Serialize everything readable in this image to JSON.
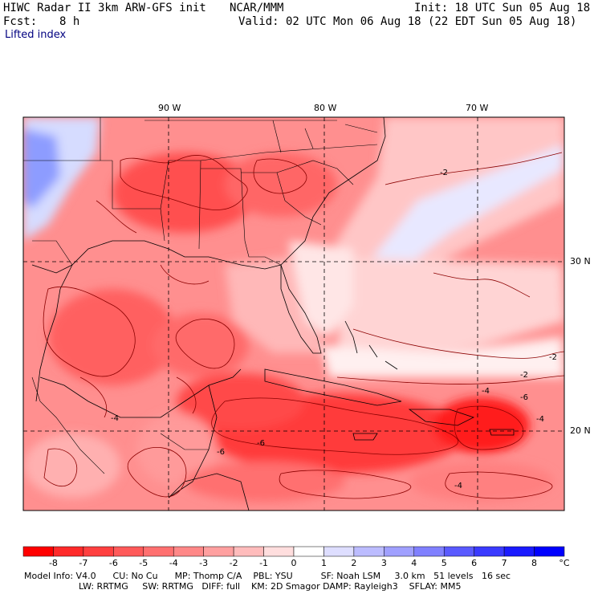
{
  "header": {
    "model_title": "HIWC Radar II 3km ARW-GFS init",
    "source": "NCAR/MMM",
    "init": "Init: 18 UTC Sun 05 Aug 18",
    "fcst_label": "Fcst:",
    "fcst_value": "8 h",
    "valid": "Valid: 02 UTC Mon 06 Aug 18 (22 EDT Sun 05 Aug 18)",
    "variable": "Lifted index"
  },
  "map": {
    "lon_labels": [
      "90 W",
      "80 W",
      "70 W"
    ],
    "lat_labels": [
      "30 N",
      "20 N"
    ],
    "contour_labels": [
      "-2",
      "-2",
      "-2",
      "-4",
      "-6",
      "-4",
      "-6",
      "-4",
      "-6",
      "-4"
    ],
    "colors": {
      "deep_red": "#ff2020",
      "red": "#ff5a5a",
      "light_red": "#ff9a9a",
      "pale_red": "#ffd0d0",
      "pale_blue": "#d0d8ff",
      "blue": "#6a7aff",
      "contour": "#8b0000"
    }
  },
  "colorbar": {
    "unit": "°C",
    "labels": [
      "-8",
      "-7",
      "-6",
      "-5",
      "-4",
      "-3",
      "-2",
      "-1",
      "0",
      "1",
      "2",
      "3",
      "4",
      "5",
      "6",
      "7",
      "8"
    ],
    "colors": [
      "#ff0000",
      "#ff2a2a",
      "#ff4040",
      "#ff5a5a",
      "#ff7070",
      "#ff8888",
      "#ffa0a0",
      "#ffbcbc",
      "#ffdede",
      "#ffffff",
      "#dedeff",
      "#bcbcff",
      "#a0a0ff",
      "#8080ff",
      "#5a5aff",
      "#3a3aff",
      "#1a1aff",
      "#0000ff"
    ]
  },
  "model_info": {
    "line1": "Model Info: V4.0      CU: No Cu      MP: Thomp C/A    PBL: YSU          SF: Noah LSM     3.0 km   51 levels   16 sec",
    "line2": "LW: RRTMG     SW: RRTMG   DIFF: full    KM: 2D Smagor DAMP: Rayleigh3    SFLAY: MM5"
  }
}
